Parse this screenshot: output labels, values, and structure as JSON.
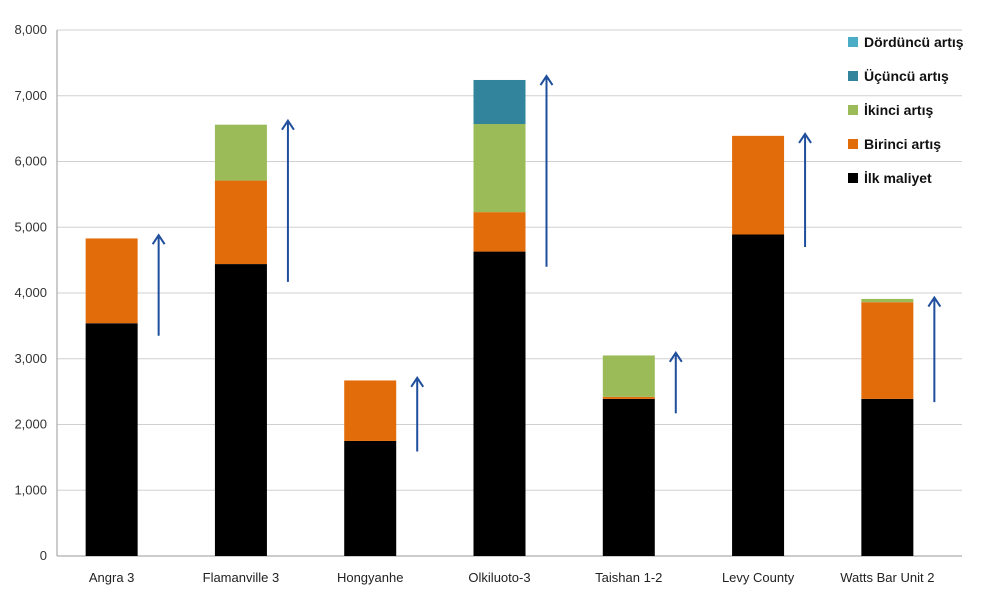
{
  "chart_data": {
    "type": "bar",
    "stacked": true,
    "categories": [
      "Angra 3",
      "Flamanville 3",
      "Hongyanhe",
      "Olkiluoto-3",
      "Taishan 1-2",
      "Levy County",
      "Watts Bar Unit 2"
    ],
    "series": [
      {
        "name": "İlk maliyet",
        "color": "#000000",
        "values": [
          3540,
          4440,
          1750,
          4630,
          2390,
          4890,
          2390
        ]
      },
      {
        "name": "Birinci artış",
        "color": "#E36C0A",
        "values": [
          1290,
          1270,
          920,
          600,
          30,
          1500,
          1470
        ]
      },
      {
        "name": "İkinci artış",
        "color": "#9BBB59",
        "values": [
          0,
          850,
          0,
          1340,
          630,
          0,
          50
        ]
      },
      {
        "name": "Üçüncü artış",
        "color": "#31849B",
        "values": [
          0,
          0,
          0,
          670,
          0,
          0,
          0
        ]
      },
      {
        "name": "Dördüncü artış",
        "color": "#4BACC6",
        "values": [
          0,
          0,
          0,
          0,
          0,
          0,
          0
        ]
      }
    ],
    "ylim": [
      0,
      8000
    ],
    "yticks": [
      "0",
      "1,000",
      "2,000",
      "3,000",
      "4,000",
      "5,000",
      "6,000",
      "7,000",
      "8,000"
    ],
    "grid": true,
    "legend_position": "top-right",
    "legend_order": [
      "Dördüncü artış",
      "Üçüncü artış",
      "İkinci artış",
      "Birinci artış",
      "İlk maliyet"
    ],
    "arrows": [
      {
        "category": "Angra 3",
        "from": 3350,
        "to": 4880
      },
      {
        "category": "Flamanville 3",
        "from": 4170,
        "to": 6620
      },
      {
        "category": "Hongyanhe",
        "from": 1590,
        "to": 2710
      },
      {
        "category": "Olkiluoto-3",
        "from": 4400,
        "to": 7300
      },
      {
        "category": "Taishan 1-2",
        "from": 2170,
        "to": 3090
      },
      {
        "category": "Levy County",
        "from": 4700,
        "to": 6420
      },
      {
        "category": "Watts Bar Unit 2",
        "from": 2340,
        "to": 3930
      }
    ],
    "arrow_color": "#1F4E9C"
  }
}
